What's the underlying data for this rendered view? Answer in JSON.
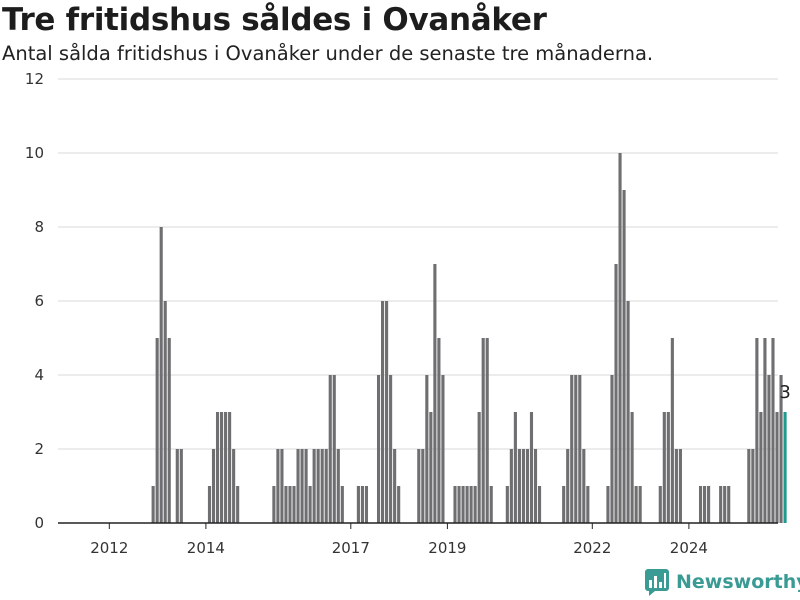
{
  "title": "Tre fritidshus såldes i Ovanåker",
  "subtitle": "Antal sålda fritidshus i Ovanåker under de senaste tre månaderna.",
  "brand": "Newsworthy",
  "colors": {
    "bar": "#6f6f72",
    "highlight": "#1e9a8f",
    "axis": "#222222",
    "grid": "#d9d9d9",
    "brand": "#3a9a94"
  },
  "chart_data": {
    "type": "bar",
    "title": "Tre fritidshus såldes i Ovanåker",
    "subtitle": "Antal sålda fritidshus i Ovanåker under de senaste tre månaderna.",
    "xlabel": "",
    "ylabel": "",
    "ylim": [
      0,
      12
    ],
    "yticks": [
      0,
      2,
      4,
      6,
      8,
      10,
      12
    ],
    "xticks": [
      "2012",
      "2014",
      "2017",
      "2019",
      "2022",
      "2024"
    ],
    "grid": true,
    "x_start": "2011-01",
    "frequency": "monthly",
    "values": [
      0,
      0,
      0,
      0,
      0,
      0,
      0,
      0,
      0,
      0,
      0,
      0,
      0,
      0,
      0,
      0,
      0,
      0,
      0,
      0,
      0,
      0,
      0,
      1,
      5,
      8,
      6,
      5,
      0,
      2,
      2,
      0,
      0,
      0,
      0,
      0,
      0,
      1,
      2,
      3,
      3,
      3,
      3,
      2,
      1,
      0,
      0,
      0,
      0,
      0,
      0,
      0,
      0,
      1,
      2,
      2,
      1,
      1,
      1,
      2,
      2,
      2,
      1,
      2,
      2,
      2,
      2,
      4,
      4,
      2,
      1,
      0,
      0,
      0,
      1,
      1,
      1,
      0,
      0,
      4,
      6,
      6,
      4,
      2,
      1,
      0,
      0,
      0,
      0,
      2,
      2,
      4,
      3,
      7,
      5,
      4,
      0,
      0,
      1,
      1,
      1,
      1,
      1,
      1,
      3,
      5,
      5,
      1,
      0,
      0,
      0,
      1,
      2,
      3,
      2,
      2,
      2,
      3,
      2,
      1,
      0,
      0,
      0,
      0,
      0,
      1,
      2,
      4,
      4,
      4,
      2,
      1,
      0,
      0,
      0,
      0,
      1,
      4,
      7,
      10,
      9,
      6,
      3,
      1,
      1,
      0,
      0,
      0,
      0,
      1,
      3,
      3,
      5,
      2,
      2,
      0,
      0,
      0,
      0,
      1,
      1,
      1,
      0,
      0,
      1,
      1,
      1,
      0,
      0,
      0,
      0,
      2,
      2,
      5,
      3,
      5,
      4,
      5,
      3,
      4,
      3
    ],
    "highlight": {
      "label": "3",
      "value": 3
    }
  }
}
